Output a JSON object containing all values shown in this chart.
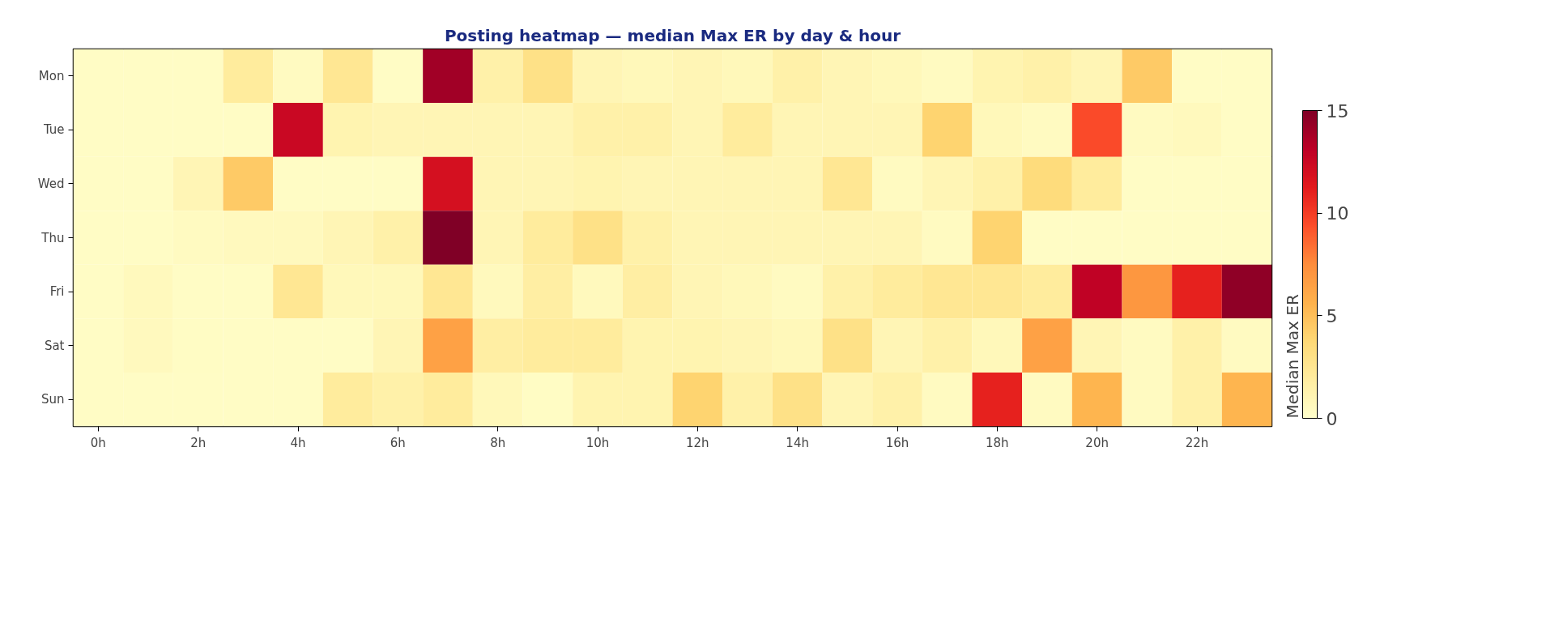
{
  "chart_data": {
    "type": "heatmap",
    "title": "Posting heatmap — median Max ER by day & hour",
    "clabel": "Median Max ER",
    "categories": [
      "0h",
      null,
      "2h",
      null,
      "4h",
      null,
      "6h",
      null,
      "8h",
      null,
      "10h",
      null,
      "12h",
      null,
      "14h",
      null,
      "16h",
      null,
      "18h",
      null,
      "20h",
      null,
      "22h",
      null
    ],
    "y_categories": [
      "Mon",
      "Tue",
      "Wed",
      "Thu",
      "Fri",
      "Sat",
      "Sun"
    ],
    "cells": [
      [
        0.3,
        0.3,
        0.3,
        2,
        0.5,
        2.5,
        0.3,
        14,
        1.5,
        3,
        1,
        0.8,
        1,
        0.8,
        1.5,
        1,
        0.8,
        0.5,
        1.2,
        1.5,
        1,
        4.5,
        0.3,
        0.3
      ],
      [
        0.3,
        0.3,
        0.3,
        0.3,
        12.5,
        1.2,
        1,
        1,
        1,
        1,
        1.5,
        1.5,
        1,
        2,
        1,
        1,
        1,
        4,
        0.8,
        0.5,
        9.5,
        0.5,
        0.7,
        0.3
      ],
      [
        0.3,
        0.3,
        1,
        4.5,
        0.3,
        0.3,
        0.3,
        12,
        1,
        1,
        1.2,
        1,
        1,
        1,
        1,
        2.5,
        0.5,
        1,
        1.5,
        3.5,
        2,
        0.3,
        0.3,
        0.3
      ],
      [
        0.3,
        0.3,
        0.5,
        0.6,
        0.6,
        1,
        1.5,
        15,
        1,
        2,
        3,
        1.5,
        1,
        1,
        1,
        1,
        1,
        0.5,
        4,
        0.3,
        0.3,
        0.3,
        0.3,
        0.3
      ],
      [
        0.3,
        0.7,
        0.3,
        0.3,
        2.5,
        0.8,
        0.8,
        2.5,
        0.7,
        1.8,
        0.7,
        1.8,
        1,
        0.8,
        0.5,
        1.5,
        2,
        2.5,
        2.5,
        2,
        13,
        7,
        11,
        14.5
      ],
      [
        0.3,
        0.6,
        0.4,
        0.3,
        0.3,
        0.3,
        1,
        6.5,
        1.8,
        2,
        2,
        1.2,
        1.2,
        1,
        0.8,
        3,
        1,
        1.5,
        0.8,
        6.5,
        1,
        0.5,
        1.5,
        0.5
      ],
      [
        0.3,
        0.3,
        0.3,
        0.3,
        0.3,
        2,
        1.5,
        2,
        0.8,
        0.4,
        1.2,
        1.2,
        4,
        1.5,
        3,
        1,
        1.5,
        0.5,
        11,
        0.5,
        5.5,
        0.5,
        1.5,
        5.5
      ]
    ],
    "clim": [
      0,
      15
    ],
    "cticks": [
      0,
      5,
      10,
      15
    ]
  }
}
